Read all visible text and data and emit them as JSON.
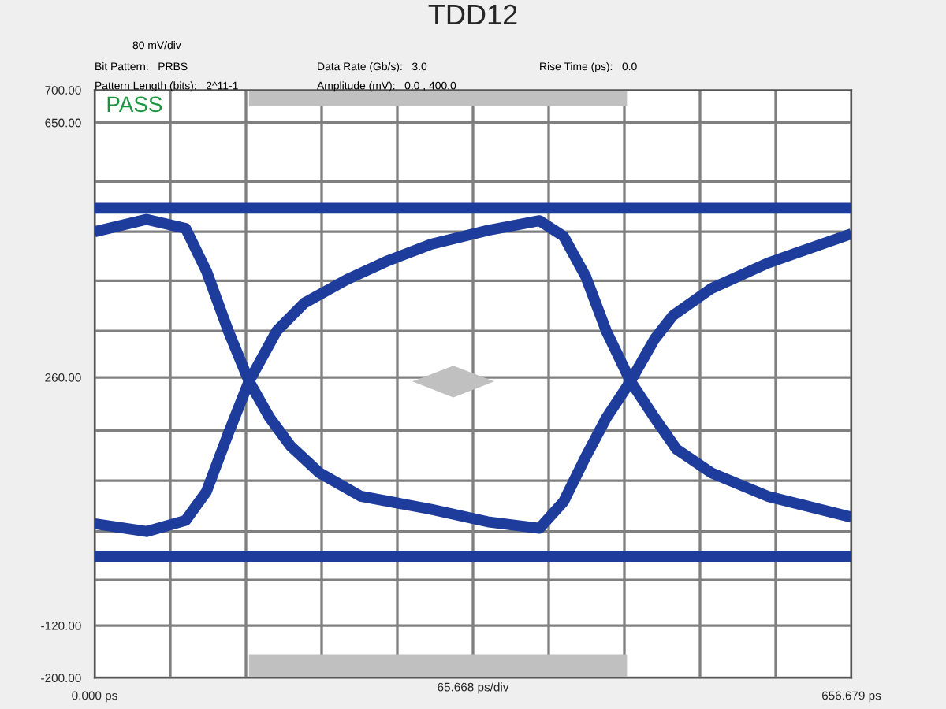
{
  "chart_data": {
    "type": "line",
    "title": "TDD12",
    "annotations": [
      "80 mV/div",
      "Bit Pattern:   PRBS",
      "Pattern Length (bits):   2^11-1",
      "Data Rate (Gb/s):   3.0",
      "Amplitude (mV):   0.0 , 400.0",
      "Rise Time (ps):   0.0",
      "PASS"
    ],
    "xlim": [
      0,
      656.679
    ],
    "ylim": [
      -200,
      700
    ],
    "xlabel": "65.668 ps/div",
    "xticks": [
      {
        "value": 0,
        "label": "0.000 ps"
      },
      {
        "value": 65.668,
        "label": null
      },
      {
        "value": 131.336,
        "label": null
      },
      {
        "value": 197.004,
        "label": null
      },
      {
        "value": 262.672,
        "label": null
      },
      {
        "value": 328.34,
        "label": null
      },
      {
        "value": 394.008,
        "label": null
      },
      {
        "value": 459.676,
        "label": null
      },
      {
        "value": 525.344,
        "label": null
      },
      {
        "value": 591.012,
        "label": null
      },
      {
        "value": 656.679,
        "label": "656.679 ps"
      }
    ],
    "yticks": [
      {
        "value": -200,
        "label": "-200.00"
      },
      {
        "value": -120,
        "label": "-120.00"
      },
      {
        "value": -50,
        "label": null
      },
      {
        "value": 24,
        "label": null
      },
      {
        "value": 102,
        "label": null
      },
      {
        "value": 179,
        "label": null
      },
      {
        "value": 260,
        "label": "260.00"
      },
      {
        "value": 331,
        "label": null
      },
      {
        "value": 408,
        "label": null
      },
      {
        "value": 483,
        "label": null
      },
      {
        "value": 560,
        "label": null
      },
      {
        "value": 650,
        "label": "650.00"
      },
      {
        "value": 700,
        "label": "700.00"
      }
    ],
    "grid": true,
    "series": [
      {
        "color": "#1e3c9c",
        "x": [
          0,
          656.679
        ],
        "values": [
          519,
          519
        ]
      },
      {
        "color": "#1e3c9c",
        "x": [
          0,
          656.679
        ],
        "values": [
          -14,
          -14
        ]
      },
      {
        "color": "#1e3c9c",
        "x": [
          0,
          45,
          79,
          97,
          116,
          134,
          152,
          170,
          195,
          231,
          292,
          341,
          386,
          407,
          426,
          444,
          465,
          486,
          502,
          535,
          584,
          656.679
        ],
        "values": [
          483,
          502,
          488,
          423,
          331,
          254,
          198,
          155,
          114,
          78,
          58,
          39,
          29,
          70,
          138,
          198,
          254,
          319,
          355,
          396,
          435,
          480
        ]
      },
      {
        "color": "#1e3c9c",
        "x": [
          0,
          45,
          79,
          97,
          116,
          134,
          158,
          182,
          219,
          255,
          292,
          341,
          386,
          407,
          426,
          444,
          465,
          486,
          505,
          535,
          584,
          656.679
        ],
        "values": [
          36,
          24,
          41,
          85,
          174,
          254,
          331,
          374,
          410,
          439,
          464,
          485,
          500,
          476,
          415,
          331,
          254,
          198,
          150,
          114,
          78,
          46
        ]
      }
    ]
  }
}
